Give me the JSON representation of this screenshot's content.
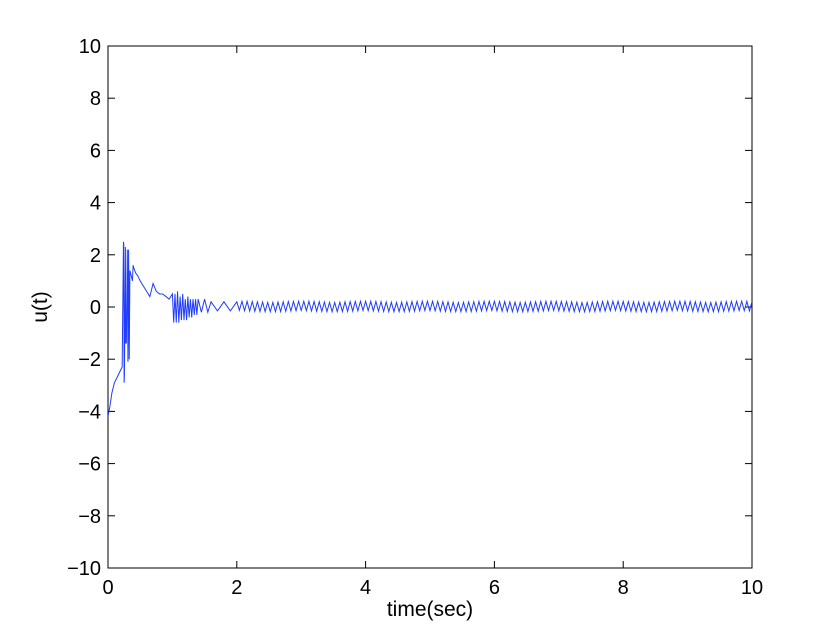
{
  "chart_data": {
    "type": "line",
    "title": "",
    "xlabel": "time(sec)",
    "ylabel": "u(t)",
    "xlim": [
      0,
      10
    ],
    "ylim": [
      -10,
      10
    ],
    "xticks": [
      0,
      2,
      4,
      6,
      8,
      10
    ],
    "yticks": [
      -10,
      -8,
      -6,
      -4,
      -2,
      0,
      2,
      4,
      6,
      8,
      10
    ],
    "grid": false,
    "line_color": "#1f3cff",
    "series": [
      {
        "x": [
          0,
          0.03,
          0.06,
          0.1,
          0.14,
          0.18,
          0.22,
          0.24,
          0.245,
          0.25,
          0.255,
          0.27,
          0.275,
          0.28,
          0.285,
          0.3,
          0.31,
          0.32,
          0.33,
          0.34,
          0.35,
          0.36,
          0.37,
          0.38,
          0.39,
          0.4,
          0.43,
          0.46,
          0.48,
          0.5,
          0.55,
          0.6,
          0.65,
          0.7,
          0.75,
          0.8,
          0.85,
          0.9,
          0.95,
          1.0,
          1.02,
          1.04,
          1.06,
          1.08,
          1.1,
          1.12,
          1.14,
          1.16,
          1.18,
          1.2,
          1.22,
          1.24,
          1.26,
          1.28,
          1.3,
          1.32,
          1.34,
          1.36,
          1.38,
          1.4,
          1.45,
          1.5,
          1.55,
          1.6,
          1.7,
          1.8,
          1.9,
          2.0
        ],
        "y": [
          -4.2,
          -3.8,
          -3.3,
          -2.9,
          -2.7,
          -2.5,
          -2.3,
          2.5,
          2.4,
          -2.9,
          -2.6,
          2.3,
          -1.4,
          -1.3,
          -1.4,
          2.2,
          -2.1,
          2.2,
          -2.0,
          1.4,
          1.3,
          1.2,
          1.1,
          1.0,
          1.6,
          1.5,
          1.3,
          1.2,
          1.1,
          1.0,
          0.8,
          0.6,
          0.4,
          0.9,
          0.6,
          0.5,
          0.5,
          0.4,
          0.3,
          0.5,
          -0.6,
          0.5,
          -0.6,
          0.6,
          -0.6,
          0.4,
          -0.5,
          0.5,
          -0.5,
          0.3,
          -0.5,
          0.4,
          -0.4,
          0.3,
          -0.4,
          0.3,
          -0.3,
          0.3,
          -0.3,
          0.3,
          -0.2,
          0.3,
          -0.2,
          0.2,
          -0.15,
          0.2,
          -0.15,
          0.2
        ]
      }
    ],
    "steady_state": {
      "x_start": 2.0,
      "x_end": 10.0,
      "step": 0.04,
      "amplitude": 0.2,
      "offset": 0.02
    }
  }
}
